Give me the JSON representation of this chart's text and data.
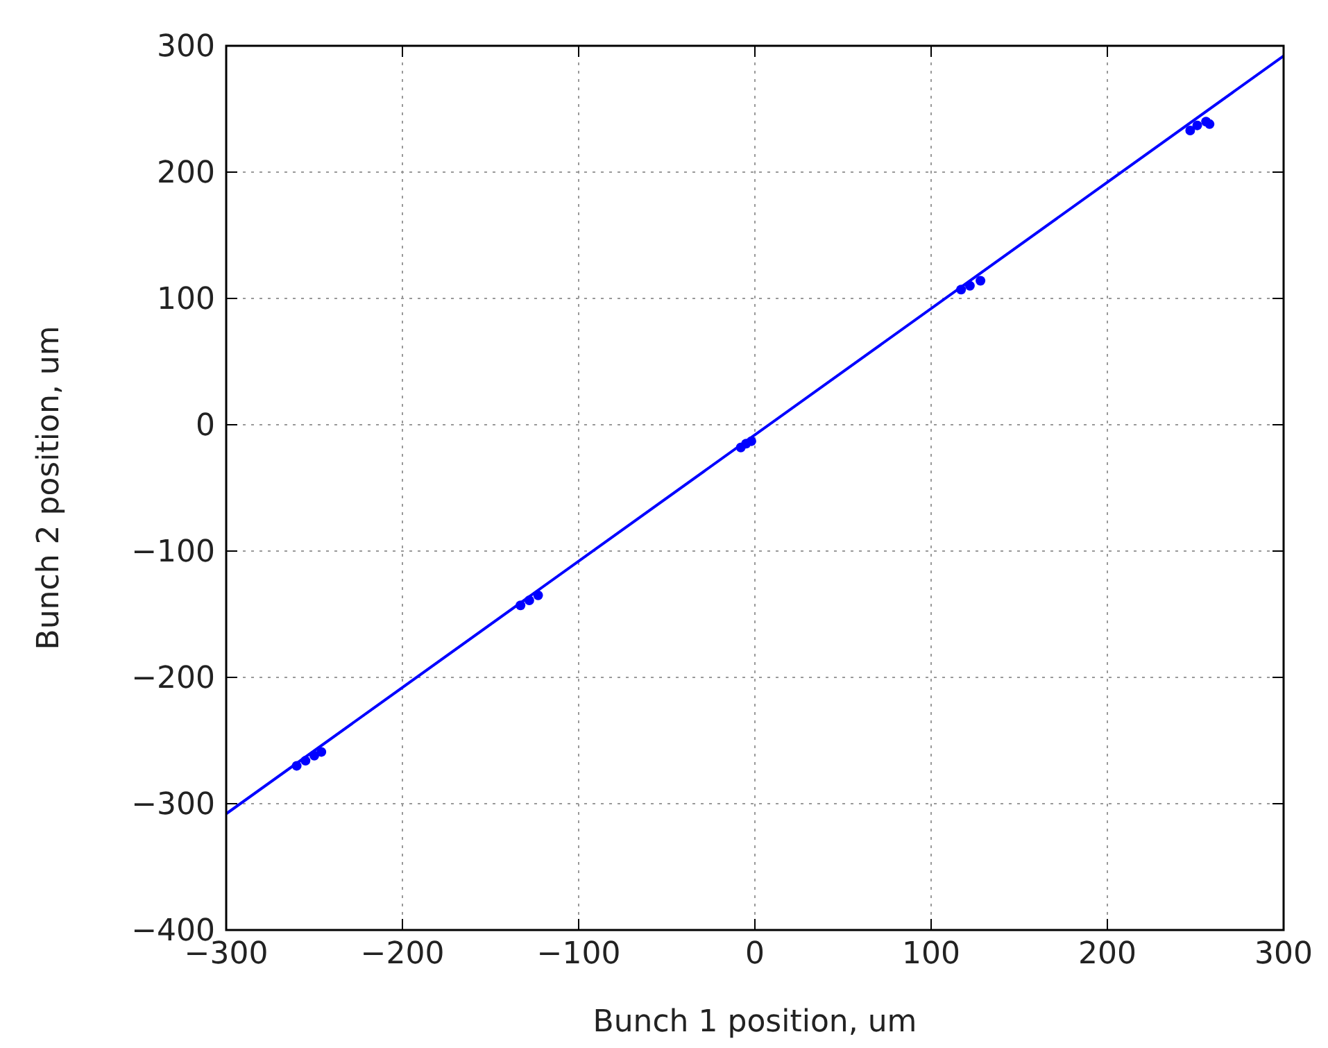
{
  "chart_data": {
    "type": "scatter",
    "xlabel": "Bunch 1 position, um",
    "ylabel": "Bunch 2 position, um",
    "xlim": [
      -300,
      300
    ],
    "ylim": [
      -400,
      300
    ],
    "xticks": [
      {
        "value": -300,
        "label": "−300"
      },
      {
        "value": -200,
        "label": "−200"
      },
      {
        "value": -100,
        "label": "−100"
      },
      0,
      100,
      200,
      300
    ],
    "yticks": [
      {
        "value": -400,
        "label": "−400"
      },
      {
        "value": -300,
        "label": "−300"
      },
      {
        "value": -200,
        "label": "−200"
      },
      {
        "value": -100,
        "label": "−100"
      },
      0,
      100,
      200,
      300
    ],
    "grid": true,
    "series": [
      {
        "marker": "circle",
        "color": "#0000ff",
        "x": [
          -260,
          -255,
          -250,
          -246,
          -133,
          -128,
          -123,
          -8,
          -5,
          -2,
          117,
          122,
          128,
          247,
          251,
          256,
          258
        ],
        "values": [
          -270,
          -266,
          -262,
          -259,
          -143,
          -139,
          -135,
          -18,
          -15,
          -13,
          107,
          110,
          114,
          233,
          237,
          240,
          238
        ]
      },
      {
        "type": "line",
        "color": "#0000ff",
        "x": [
          -300,
          300
        ],
        "values": [
          -308,
          292
        ]
      }
    ]
  }
}
